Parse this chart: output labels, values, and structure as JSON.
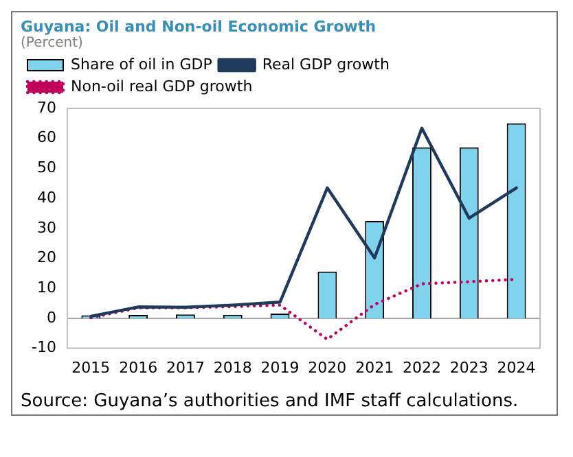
{
  "chart_data": {
    "type": "bar",
    "title": "Guyana: Oil and Non-oil Economic Growth",
    "subtitle": "(Percent)",
    "categories": [
      "2015",
      "2016",
      "2017",
      "2018",
      "2019",
      "2020",
      "2021",
      "2022",
      "2023",
      "2024"
    ],
    "series": [
      {
        "name": "Share of oil in GDP",
        "color": "#7fd3ec",
        "values": [
          1.0,
          1.1,
          1.3,
          1.2,
          1.6,
          15.6,
          32.5,
          57.0,
          57.0,
          65.0
        ]
      },
      {
        "name": "Real GDP growth",
        "type": "line",
        "color": "#1f3a5a",
        "line_style": "solid",
        "values": [
          0.7,
          3.8,
          3.7,
          4.4,
          5.4,
          43.5,
          20.1,
          63.4,
          33.4,
          43.5
        ]
      },
      {
        "name": "Non-oil real GDP growth",
        "type": "line",
        "color": "#c0005a",
        "line_style": "dotted",
        "values": [
          0.2,
          3.5,
          3.5,
          3.9,
          4.4,
          -7.0,
          4.6,
          11.5,
          12.2,
          13.0
        ]
      }
    ],
    "ylim": [
      -10,
      70
    ],
    "yticks": [
      -10,
      0,
      10,
      20,
      30,
      40,
      50,
      60,
      70
    ],
    "grid": false,
    "legend": "top left",
    "marker": "none",
    "ref_lines": [
      {
        "axis": "y",
        "value": 0,
        "color": "#a6a6a6"
      }
    ],
    "annotations": [
      "Source: Guyana’s authorities and IMF staff calculations."
    ]
  }
}
